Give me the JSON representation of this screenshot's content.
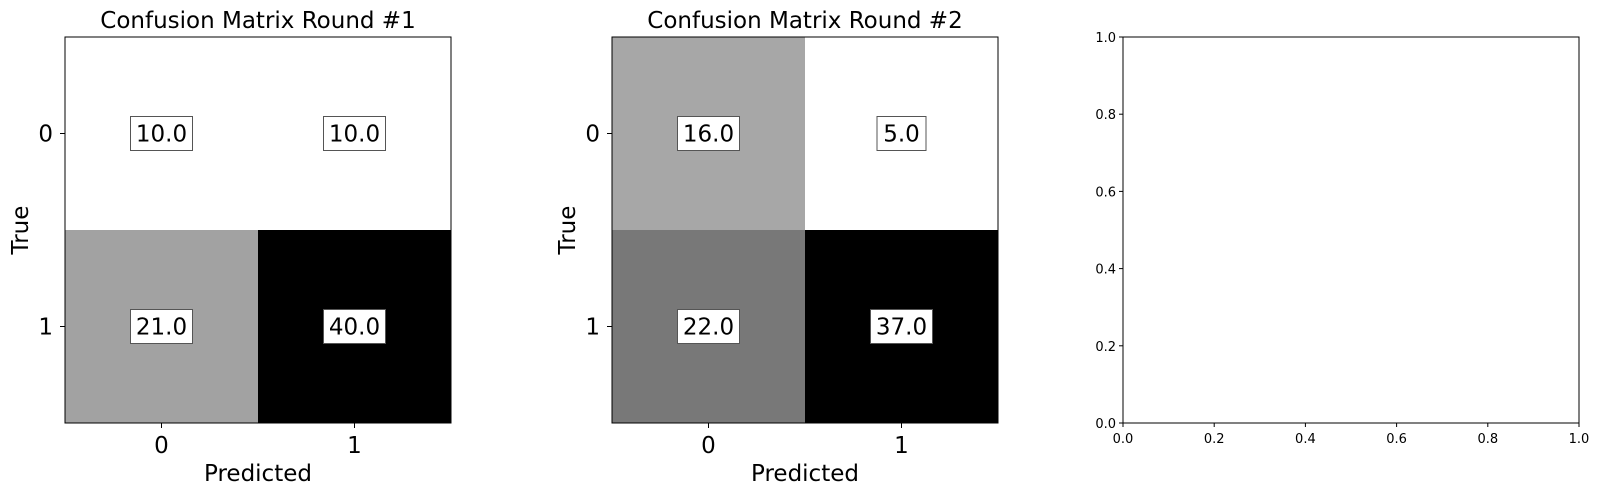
{
  "chart_data": [
    {
      "type": "heatmap",
      "title": "Confusion Matrix Round #1",
      "xlabel": "Predicted",
      "ylabel": "True",
      "x_categories": [
        "0",
        "1"
      ],
      "y_categories": [
        "0",
        "1"
      ],
      "colormap": "gray_r",
      "values": [
        [
          10.0,
          10.0
        ],
        [
          21.0,
          40.0
        ]
      ],
      "cell_labels": [
        [
          "10.0",
          "10.0"
        ],
        [
          "21.0",
          "40.0"
        ]
      ]
    },
    {
      "type": "heatmap",
      "title": "Confusion Matrix Round #2",
      "xlabel": "Predicted",
      "ylabel": "True",
      "x_categories": [
        "0",
        "1"
      ],
      "y_categories": [
        "0",
        "1"
      ],
      "colormap": "gray_r",
      "values": [
        [
          16.0,
          5.0
        ],
        [
          22.0,
          37.0
        ]
      ],
      "cell_labels": [
        [
          "16.0",
          "5.0"
        ],
        [
          "22.0",
          "37.0"
        ]
      ]
    },
    {
      "type": "scatter",
      "title": "",
      "xlabel": "",
      "ylabel": "",
      "xlim": [
        0.0,
        1.0
      ],
      "ylim": [
        0.0,
        1.0
      ],
      "x_ticks": [
        "0.0",
        "0.2",
        "0.4",
        "0.6",
        "0.8",
        "1.0"
      ],
      "y_ticks": [
        "0.0",
        "0.2",
        "0.4",
        "0.6",
        "0.8",
        "1.0"
      ],
      "series": []
    }
  ]
}
